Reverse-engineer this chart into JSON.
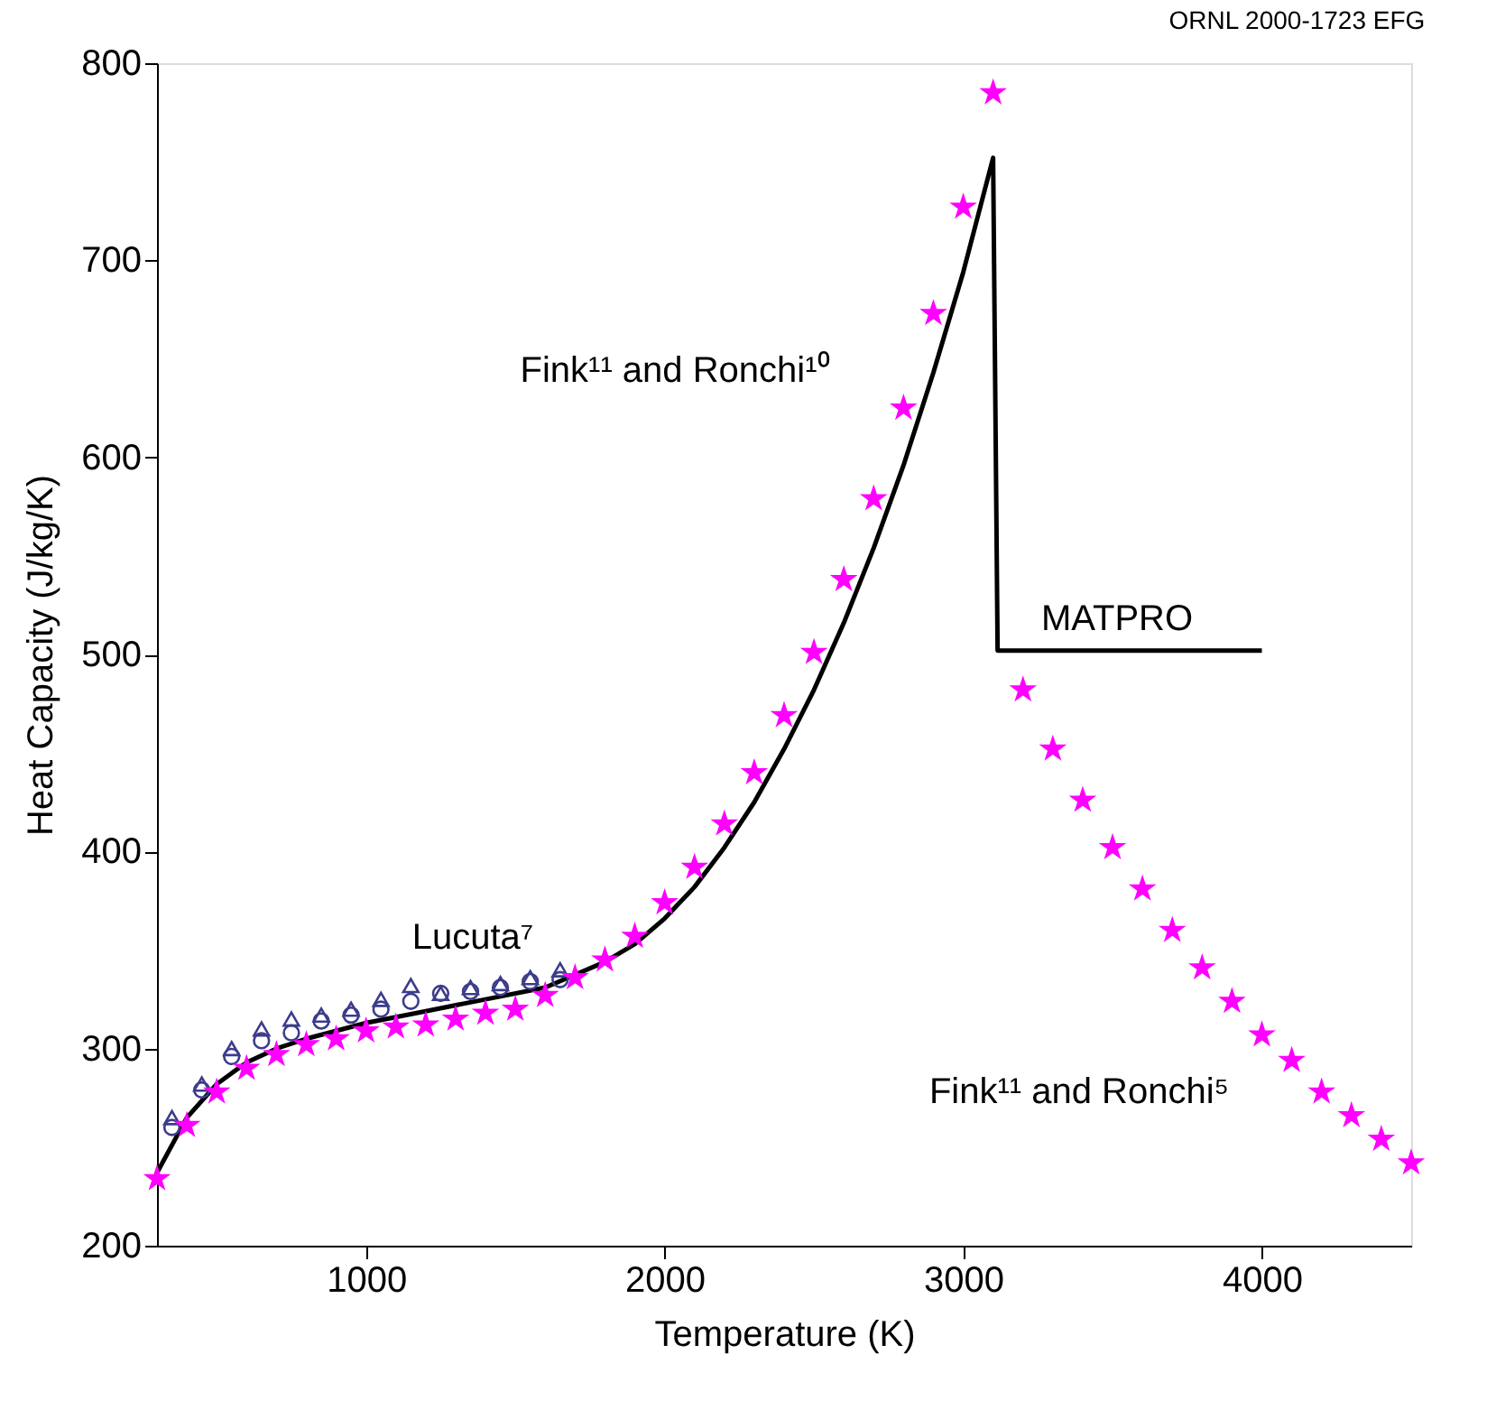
{
  "chart_data": {
    "type": "scatter",
    "xlabel": "Temperature (K)",
    "ylabel": "Heat Capacity (J/kg/K)",
    "xlim": [
      300,
      4500
    ],
    "ylim": [
      200,
      800
    ],
    "xticks": [
      1000,
      2000,
      3000,
      4000
    ],
    "yticks": [
      200,
      300,
      400,
      500,
      600,
      700,
      800
    ],
    "grid": false,
    "series": [
      {
        "type": "line",
        "color": "#000000",
        "line_style": "solid",
        "marker": "none",
        "x": [
          300,
          400,
          500,
          600,
          700,
          800,
          1000,
          1200,
          1400,
          1600,
          1800,
          1900,
          2000,
          2100,
          2200,
          2300,
          2400,
          2500,
          2600,
          2700,
          2800,
          2900,
          3000,
          3100,
          3115,
          4000
        ],
        "values": [
          237,
          265,
          282,
          293,
          300,
          305,
          313,
          319,
          325,
          331,
          344,
          353,
          366,
          382,
          402,
          425,
          452,
          482,
          516,
          554,
          596,
          643,
          694,
          752,
          502,
          502
        ]
      },
      {
        "color": "#3c3c8c",
        "marker": "triangle",
        "x": [
          350,
          450,
          550,
          650,
          750,
          850,
          950,
          1050,
          1150,
          1250,
          1350,
          1450,
          1550,
          1650
        ],
        "values": [
          265,
          282,
          300,
          310,
          315,
          317,
          320,
          325,
          332,
          328,
          331,
          333,
          336,
          340
        ]
      },
      {
        "color": "#3c3c8c",
        "marker": "circle",
        "x": [
          350,
          450,
          550,
          650,
          750,
          850,
          950,
          1050,
          1150,
          1250,
          1350,
          1450,
          1550,
          1650
        ],
        "values": [
          260,
          279,
          296,
          304,
          308,
          314,
          317,
          320,
          324,
          328,
          329,
          331,
          334,
          335
        ]
      },
      {
        "color": "#ff00ff",
        "marker": "star",
        "x": [
          300,
          400,
          500,
          600,
          700,
          800,
          900,
          1000,
          1100,
          1200,
          1300,
          1400,
          1500,
          1600,
          1700,
          1800,
          1900,
          2000,
          2100,
          2200,
          2300,
          2400,
          2500,
          2600,
          2700,
          2800,
          2900,
          3000,
          3100,
          3200,
          3300,
          3400,
          3500,
          3600,
          3700,
          3800,
          3900,
          4000,
          4100,
          4200,
          4300,
          4400,
          4500
        ],
        "values": [
          234,
          261,
          278,
          290,
          297,
          302,
          305,
          309,
          311,
          312,
          315,
          318,
          320,
          327,
          336,
          345,
          357,
          374,
          392,
          414,
          440,
          469,
          501,
          538,
          579,
          625,
          673,
          727,
          785,
          482,
          452,
          426,
          402,
          381,
          360,
          341,
          324,
          307,
          294,
          278,
          266,
          254,
          242
        ]
      }
    ],
    "annotations": [
      "Fink¹¹ and Ronchi¹⁰",
      "Lucuta⁷",
      "MATPRO",
      "Fink¹¹ and Ronchi⁵",
      "ORNL 2000-1723 EFG"
    ]
  }
}
